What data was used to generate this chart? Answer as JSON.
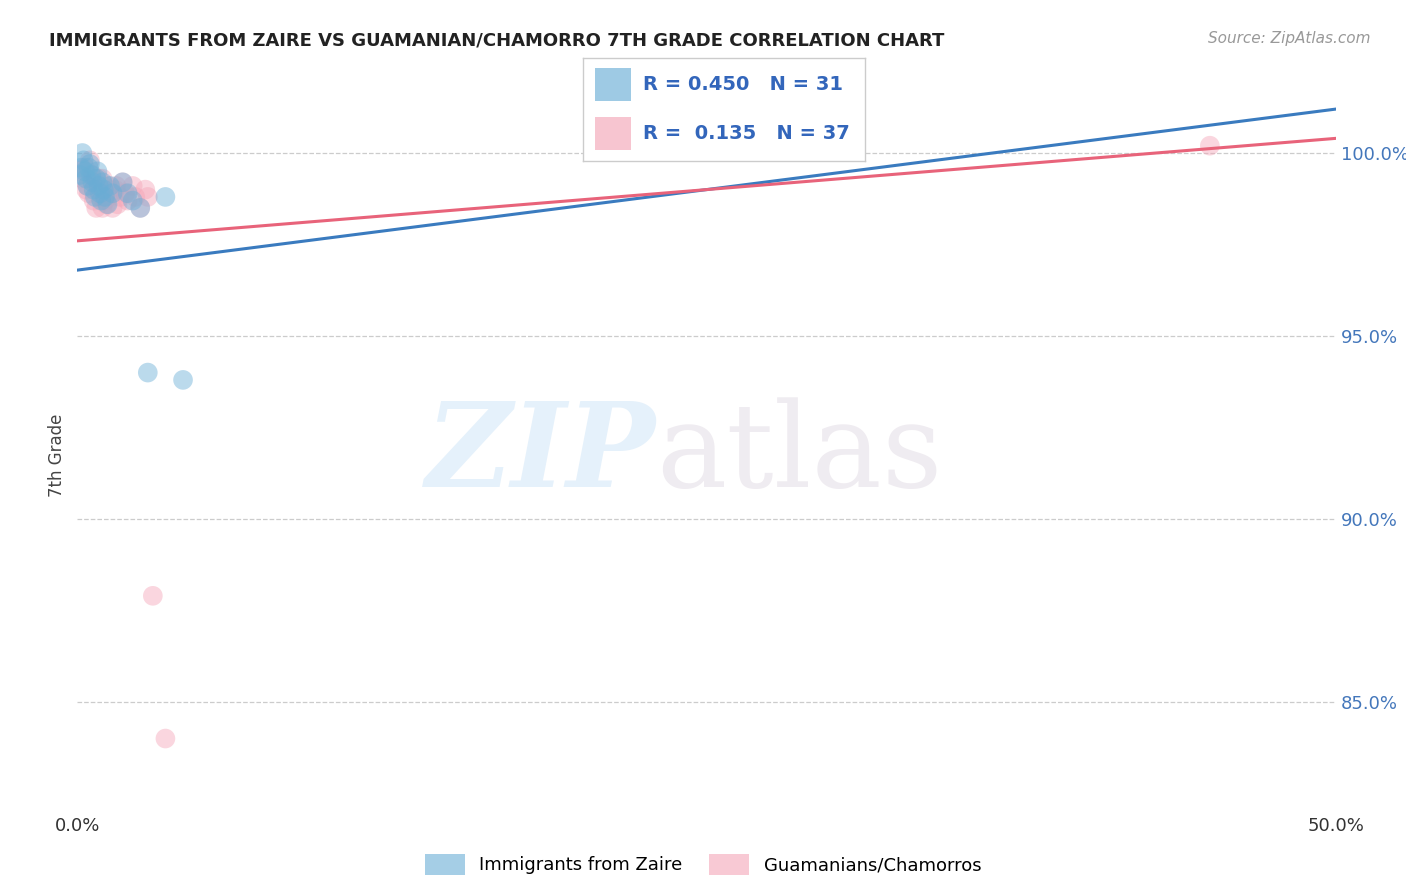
{
  "title": "IMMIGRANTS FROM ZAIRE VS GUAMANIAN/CHAMORRO 7TH GRADE CORRELATION CHART",
  "source": "Source: ZipAtlas.com",
  "ylabel": "7th Grade",
  "xlim": [
    0.0,
    50.0
  ],
  "ylim": [
    82.0,
    101.5
  ],
  "y_ticks": [
    85.0,
    90.0,
    95.0,
    100.0
  ],
  "blue_R": 0.45,
  "blue_N": 31,
  "pink_R": 0.135,
  "pink_N": 37,
  "blue_color": "#6aaed6",
  "pink_color": "#f4a6b8",
  "blue_line_color": "#3a7bbf",
  "pink_line_color": "#e8637a",
  "blue_line_x": [
    0.0,
    50.0
  ],
  "blue_line_y": [
    96.8,
    101.2
  ],
  "pink_line_x": [
    0.0,
    50.0
  ],
  "pink_line_y": [
    97.6,
    100.4
  ],
  "blue_points_x": [
    0.1,
    0.15,
    0.2,
    0.25,
    0.3,
    0.35,
    0.4,
    0.45,
    0.5,
    0.55,
    0.6,
    0.65,
    0.7,
    0.75,
    0.8,
    0.85,
    0.9,
    0.95,
    1.0,
    1.05,
    1.1,
    1.2,
    1.3,
    1.4,
    1.8,
    2.0,
    2.2,
    2.5,
    3.5,
    2.8,
    4.2
  ],
  "blue_points_y": [
    99.4,
    99.6,
    100.0,
    99.8,
    99.5,
    99.3,
    99.1,
    99.6,
    99.7,
    99.4,
    99.2,
    99.0,
    98.8,
    99.3,
    99.5,
    99.1,
    98.9,
    98.7,
    99.2,
    99.0,
    98.8,
    98.6,
    99.1,
    98.9,
    99.2,
    98.9,
    98.7,
    98.5,
    98.8,
    94.0,
    93.8
  ],
  "pink_points_x": [
    0.1,
    0.2,
    0.3,
    0.4,
    0.5,
    0.6,
    0.7,
    0.8,
    0.9,
    1.0,
    1.1,
    1.2,
    1.3,
    1.4,
    1.5,
    1.6,
    1.7,
    1.8,
    1.9,
    2.0,
    2.2,
    2.5,
    2.8,
    0.35,
    0.65,
    0.85,
    1.15,
    1.55,
    0.45,
    0.75,
    1.25,
    2.3,
    3.0,
    3.5,
    45.0,
    1.0,
    2.7
  ],
  "pink_points_y": [
    99.5,
    99.3,
    99.6,
    99.1,
    99.8,
    99.4,
    99.2,
    99.0,
    98.8,
    99.3,
    98.7,
    99.1,
    98.9,
    98.5,
    99.0,
    98.6,
    98.8,
    99.2,
    98.9,
    98.7,
    99.1,
    98.5,
    98.8,
    99.0,
    98.7,
    99.3,
    98.6,
    99.1,
    98.9,
    98.5,
    99.0,
    98.8,
    87.9,
    84.0,
    100.2,
    98.5,
    99.0
  ]
}
